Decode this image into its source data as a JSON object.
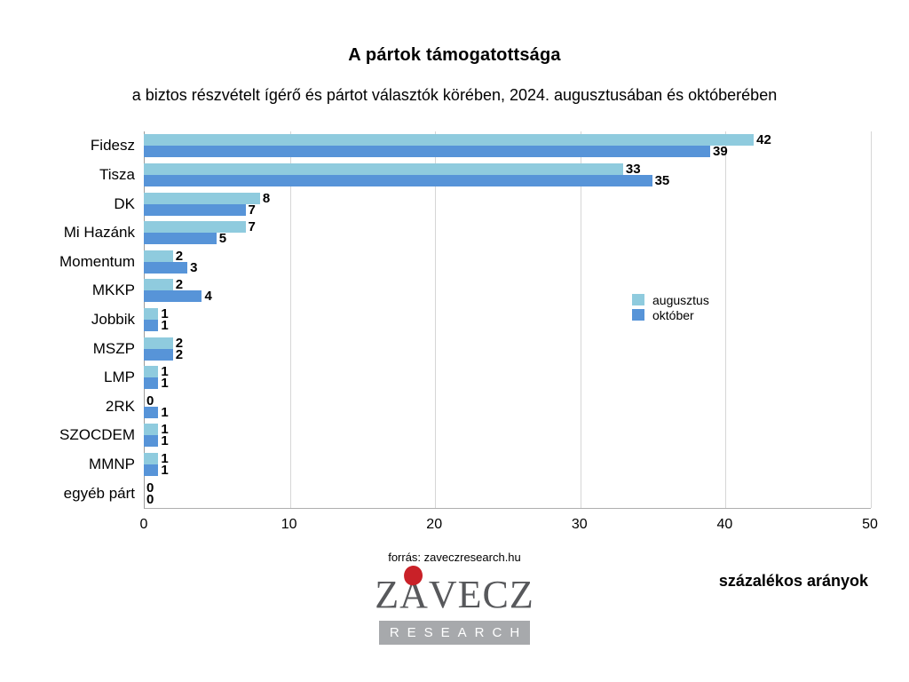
{
  "title": "A pártok támogatottsága",
  "subtitle": "a biztos részvételt ígérő és pártot választók körében, 2024. augusztusában és októberében",
  "chart_data": {
    "type": "bar",
    "orientation": "horizontal",
    "title": "A pártok támogatottsága",
    "subtitle": "a biztos részvételt ígérő és pártot választók körében, 2024. augusztusában és októberében",
    "categories": [
      "Fidesz",
      "Tisza",
      "DK",
      "Mi Hazánk",
      "Momentum",
      "MKKP",
      "Jobbik",
      "MSZP",
      "LMP",
      "2RK",
      "SZOCDEM",
      "MMNP",
      "egyéb párt"
    ],
    "series": [
      {
        "name": "augusztus",
        "color": "#8fcbde",
        "values": [
          42,
          33,
          8,
          7,
          2,
          2,
          1,
          2,
          1,
          0,
          1,
          1,
          0
        ]
      },
      {
        "name": "október",
        "color": "#5794d8",
        "values": [
          39,
          35,
          7,
          5,
          3,
          4,
          1,
          2,
          1,
          1,
          1,
          1,
          0
        ]
      }
    ],
    "xlabel": "",
    "ylabel": "",
    "xlim": [
      0,
      50
    ],
    "xticks": [
      0,
      10,
      20,
      30,
      40,
      50
    ],
    "grid": "vertical",
    "legend_position": "right-middle",
    "value_labels": true
  },
  "footer": {
    "source": "forrás: zaveczresearch.hu",
    "note": "százalékos arányok",
    "logo": {
      "line1": "ZÁVECZ",
      "line2": "RESEARCH",
      "text_color": "#57585b",
      "dot_color": "#c92128",
      "banner_color": "#a7a9ac"
    }
  }
}
